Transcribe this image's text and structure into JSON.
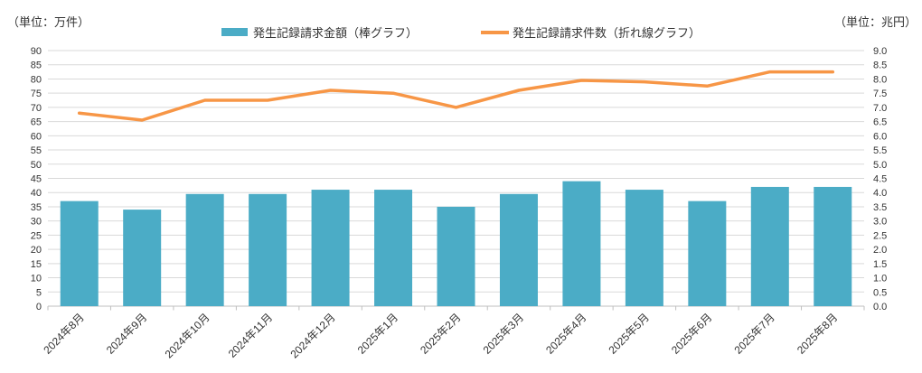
{
  "units": {
    "left": "（単位：万件）",
    "right": "（単位：兆円）"
  },
  "legend": [
    {
      "label": "発生記録請求金額（棒グラフ）",
      "type": "bar",
      "color": "#4BACC6"
    },
    {
      "label": "発生記録請求件数（折れ線グラフ）",
      "type": "line",
      "color": "#F79646"
    }
  ],
  "chart_data": {
    "type": "combo-bar-line",
    "categories": [
      "2024年8月",
      "2024年9月",
      "2024年10月",
      "2024年11月",
      "2024年12月",
      "2025年1月",
      "2025年2月",
      "2025年3月",
      "2025年4月",
      "2025年5月",
      "2025年6月",
      "2025年7月",
      "2025年8月"
    ],
    "series": [
      {
        "name": "発生記録請求金額（棒グラフ）",
        "type": "bar",
        "axis": "right",
        "unit": "兆円",
        "color": "#4BACC6",
        "values": [
          3.7,
          3.4,
          3.95,
          3.95,
          4.1,
          4.1,
          3.5,
          3.95,
          4.4,
          4.1,
          3.7,
          4.2,
          4.2
        ]
      },
      {
        "name": "発生記録請求件数（折れ線グラフ）",
        "type": "line",
        "axis": "left",
        "unit": "万件",
        "color": "#F79646",
        "values": [
          68,
          65.5,
          72.5,
          72.5,
          76,
          75,
          70,
          76,
          79.5,
          79,
          77.5,
          82.5,
          82.5
        ]
      }
    ],
    "left_axis": {
      "min": 0,
      "max": 90,
      "step": 5,
      "ticks": [
        "0",
        "5",
        "10",
        "15",
        "20",
        "25",
        "30",
        "35",
        "40",
        "45",
        "50",
        "55",
        "60",
        "65",
        "70",
        "75",
        "80",
        "85",
        "90"
      ]
    },
    "right_axis": {
      "min": 0,
      "max": 9,
      "step": 0.5,
      "ticks": [
        "0.0",
        "0.5",
        "1.0",
        "1.5",
        "2.0",
        "2.5",
        "3.0",
        "3.5",
        "4.0",
        "4.5",
        "5.0",
        "5.5",
        "6.0",
        "6.5",
        "7.0",
        "7.5",
        "8.0",
        "8.5",
        "9.0"
      ]
    },
    "grid": true,
    "legend_position": "top",
    "grid_color": "#d9d9d9",
    "axis_line_color": "#bfbfbf"
  }
}
